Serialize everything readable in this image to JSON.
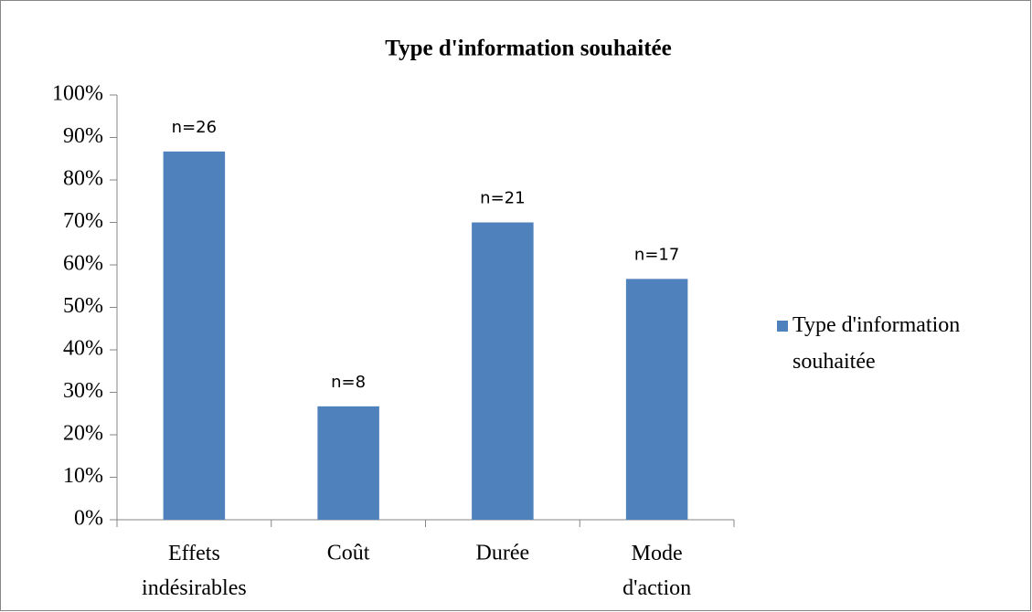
{
  "chart_data": {
    "type": "bar",
    "title": "Type d'information souhaitée",
    "categories": [
      "Effets indésirables",
      "Coût",
      "Durée",
      "Mode d'action"
    ],
    "series": [
      {
        "name": "Type d'information souhaitée",
        "color": "#4f81bd",
        "values": [
          86.7,
          26.7,
          70,
          56.7
        ]
      }
    ],
    "annotations": [
      "n=26",
      "n=8",
      "n=21",
      "n=17"
    ],
    "ylim": [
      0,
      100
    ],
    "yticks": [
      {
        "value": 0,
        "label": "0%"
      },
      {
        "value": 10,
        "label": "10%"
      },
      {
        "value": 20,
        "label": "20%"
      },
      {
        "value": 30,
        "label": "30%"
      },
      {
        "value": 40,
        "label": "40%"
      },
      {
        "value": 50,
        "label": "50%"
      },
      {
        "value": 60,
        "label": "60%"
      },
      {
        "value": 70,
        "label": "70%"
      },
      {
        "value": 80,
        "label": "80%"
      },
      {
        "value": 90,
        "label": "90%"
      },
      {
        "value": 100,
        "label": "100%"
      }
    ],
    "legend": "right"
  }
}
